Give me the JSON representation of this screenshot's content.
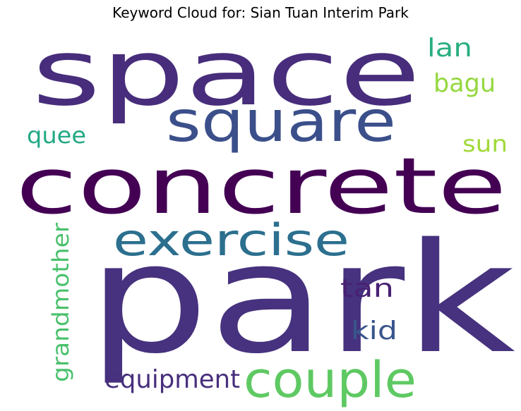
{
  "chart_data": {
    "type": "wordcloud",
    "title": "Keyword Cloud for: Sian Tuan Interim Park",
    "background": "#ffffff",
    "colormap": "viridis",
    "words": [
      {
        "text": "park",
        "color": "#46327e"
      },
      {
        "text": "space",
        "color": "#472d7b"
      },
      {
        "text": "concrete",
        "color": "#440154"
      },
      {
        "text": "square",
        "color": "#3b4f8a"
      },
      {
        "text": "exercise",
        "color": "#2c6f8e"
      },
      {
        "text": "couple",
        "color": "#5ec962"
      },
      {
        "text": "equipment",
        "color": "#472f7d"
      },
      {
        "text": "grandmother",
        "color": "#4ac16d"
      },
      {
        "text": "kid",
        "color": "#39568c"
      },
      {
        "text": "tan",
        "color": "#482173"
      },
      {
        "text": "quee",
        "color": "#22a884"
      },
      {
        "text": "sun",
        "color": "#a0da39"
      },
      {
        "text": "bagu",
        "color": "#95d840"
      },
      {
        "text": "lan",
        "color": "#29af7f"
      }
    ]
  }
}
